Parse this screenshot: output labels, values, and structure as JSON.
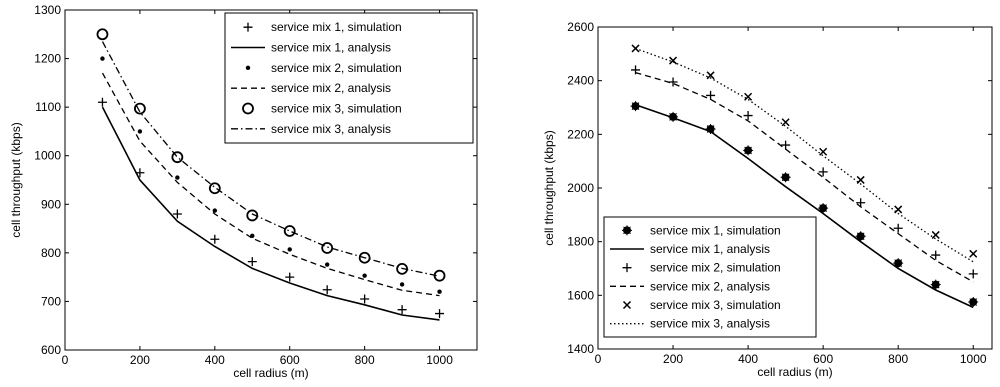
{
  "chart_data": [
    {
      "type": "line",
      "xlabel": "cell radius (m)",
      "ylabel": "cell throughput (kbps)",
      "xlim": [
        0,
        1100
      ],
      "ylim": [
        600,
        1300
      ],
      "xticks": [
        0,
        200,
        400,
        600,
        800,
        1000
      ],
      "yticks": [
        600,
        700,
        800,
        900,
        1000,
        1100,
        1200,
        1300
      ],
      "grid": false,
      "legend_position": "top-right",
      "series": [
        {
          "name": "service mix 1, simulation",
          "style": "marker-plus",
          "x": [
            100,
            200,
            300,
            400,
            500,
            600,
            700,
            800,
            900,
            1000
          ],
          "y": [
            1110,
            965,
            880,
            828,
            782,
            750,
            724,
            705,
            683,
            675
          ]
        },
        {
          "name": "service mix 1, analysis",
          "style": "solid",
          "x": [
            100,
            200,
            300,
            400,
            500,
            600,
            700,
            800,
            900,
            1000
          ],
          "y": [
            1100,
            950,
            865,
            813,
            768,
            738,
            712,
            693,
            672,
            662
          ]
        },
        {
          "name": "service mix 2, simulation",
          "style": "marker-dot",
          "x": [
            100,
            200,
            300,
            400,
            500,
            600,
            700,
            800,
            900,
            1000
          ],
          "y": [
            1200,
            1050,
            955,
            887,
            835,
            807,
            776,
            753,
            735,
            720
          ]
        },
        {
          "name": "service mix 2, analysis",
          "style": "dashed",
          "x": [
            100,
            200,
            300,
            400,
            500,
            600,
            700,
            800,
            900,
            1000
          ],
          "y": [
            1170,
            1030,
            945,
            880,
            830,
            797,
            768,
            745,
            723,
            712
          ]
        },
        {
          "name": "service mix 3, simulation",
          "style": "marker-circle",
          "x": [
            100,
            200,
            300,
            400,
            500,
            600,
            700,
            800,
            900,
            1000
          ],
          "y": [
            1250,
            1097,
            997,
            933,
            877,
            845,
            810,
            790,
            767,
            753
          ]
        },
        {
          "name": "service mix 3, analysis",
          "style": "dashdot",
          "x": [
            100,
            200,
            300,
            400,
            500,
            600,
            700,
            800,
            900,
            1000
          ],
          "y": [
            1235,
            1090,
            997,
            935,
            880,
            845,
            812,
            790,
            768,
            752
          ]
        }
      ]
    },
    {
      "type": "line",
      "xlabel": "cell radius (m)",
      "ylabel": "cell throughput (kbps)",
      "xlim": [
        0,
        1050
      ],
      "ylim": [
        1400,
        2600
      ],
      "xticks": [
        0,
        200,
        400,
        600,
        800,
        1000
      ],
      "yticks": [
        1400,
        1600,
        1800,
        2000,
        2200,
        2400,
        2600
      ],
      "grid": false,
      "legend_position": "bottom-left",
      "series": [
        {
          "name": "service mix 1, simulation",
          "style": "marker-star",
          "x": [
            100,
            200,
            300,
            400,
            500,
            600,
            700,
            800,
            900,
            1000
          ],
          "y": [
            2305,
            2265,
            2220,
            2140,
            2040,
            1925,
            1820,
            1720,
            1640,
            1575
          ]
        },
        {
          "name": "service mix 1, analysis",
          "style": "solid",
          "x": [
            100,
            200,
            300,
            400,
            500,
            600,
            700,
            800,
            900,
            1000
          ],
          "y": [
            2310,
            2262,
            2210,
            2110,
            2005,
            1905,
            1800,
            1700,
            1620,
            1555
          ]
        },
        {
          "name": "service mix 2, simulation",
          "style": "marker-plus",
          "x": [
            100,
            200,
            300,
            400,
            500,
            600,
            700,
            800,
            900,
            1000
          ],
          "y": [
            2440,
            2395,
            2345,
            2270,
            2160,
            2060,
            1945,
            1850,
            1750,
            1680
          ]
        },
        {
          "name": "service mix 2, analysis",
          "style": "dashed",
          "x": [
            100,
            200,
            300,
            400,
            500,
            600,
            700,
            800,
            900,
            1000
          ],
          "y": [
            2430,
            2390,
            2330,
            2250,
            2145,
            2040,
            1930,
            1830,
            1730,
            1650
          ]
        },
        {
          "name": "service mix 3, simulation",
          "style": "marker-x",
          "x": [
            100,
            200,
            300,
            400,
            500,
            600,
            700,
            800,
            900,
            1000
          ],
          "y": [
            2520,
            2475,
            2420,
            2340,
            2245,
            2135,
            2030,
            1920,
            1825,
            1755
          ]
        },
        {
          "name": "service mix 3, analysis",
          "style": "dotted",
          "x": [
            100,
            200,
            300,
            400,
            500,
            600,
            700,
            800,
            900,
            1000
          ],
          "y": [
            2520,
            2470,
            2410,
            2330,
            2230,
            2120,
            2015,
            1905,
            1810,
            1725
          ]
        }
      ]
    }
  ]
}
